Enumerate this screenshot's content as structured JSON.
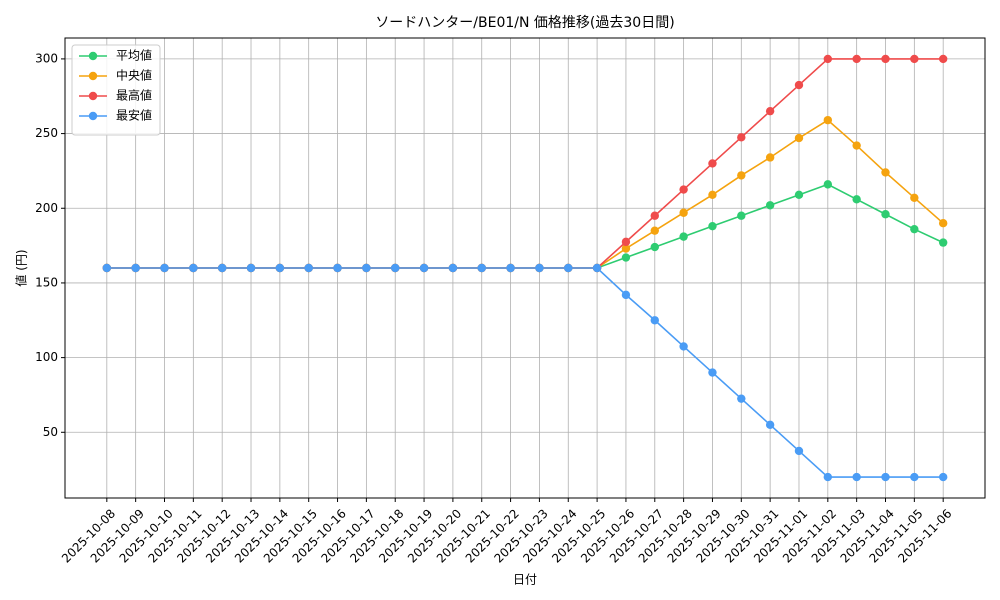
{
  "chart_data": {
    "type": "line",
    "title": "ソードハンター/BE01/N 価格推移(過去30日間)",
    "x_label": "日付",
    "y_label": "値 (円)",
    "categories": [
      "2025-10-08",
      "2025-10-09",
      "2025-10-10",
      "2025-10-11",
      "2025-10-12",
      "2025-10-13",
      "2025-10-14",
      "2025-10-15",
      "2025-10-16",
      "2025-10-17",
      "2025-10-18",
      "2025-10-19",
      "2025-10-20",
      "2025-10-21",
      "2025-10-22",
      "2025-10-23",
      "2025-10-24",
      "2025-10-25",
      "2025-10-26",
      "2025-10-27",
      "2025-10-28",
      "2025-10-29",
      "2025-10-30",
      "2025-10-31",
      "2025-11-01",
      "2025-11-02",
      "2025-11-03",
      "2025-11-04",
      "2025-11-05",
      "2025-11-06"
    ],
    "series": [
      {
        "name": "平均値",
        "color": "#2ecc71",
        "values": [
          160,
          160,
          160,
          160,
          160,
          160,
          160,
          160,
          160,
          160,
          160,
          160,
          160,
          160,
          160,
          160,
          160,
          160,
          167,
          174,
          181,
          188,
          195,
          202,
          209,
          216,
          206,
          196,
          186,
          177
        ]
      },
      {
        "name": "中央値",
        "color": "#f5a30f",
        "values": [
          160,
          160,
          160,
          160,
          160,
          160,
          160,
          160,
          160,
          160,
          160,
          160,
          160,
          160,
          160,
          160,
          160,
          160,
          173,
          185,
          197,
          209,
          222,
          234,
          247,
          259,
          242,
          224,
          207,
          190
        ]
      },
      {
        "name": "最高値",
        "color": "#ef4b4b",
        "values": [
          160,
          160,
          160,
          160,
          160,
          160,
          160,
          160,
          160,
          160,
          160,
          160,
          160,
          160,
          160,
          160,
          160,
          160,
          177.5,
          195,
          212.5,
          230,
          247.5,
          265,
          282.5,
          300,
          300,
          300,
          300,
          300
        ]
      },
      {
        "name": "最安値",
        "color": "#4a9cf5",
        "values": [
          160,
          160,
          160,
          160,
          160,
          160,
          160,
          160,
          160,
          160,
          160,
          160,
          160,
          160,
          160,
          160,
          160,
          160,
          142,
          125,
          107.5,
          90,
          72.5,
          55,
          37.5,
          20,
          20,
          20,
          20,
          20
        ]
      }
    ],
    "ylim": [
      6,
      314
    ],
    "yticks": [
      50,
      100,
      150,
      200,
      250,
      300
    ],
    "grid": true,
    "legend": "upper left"
  }
}
